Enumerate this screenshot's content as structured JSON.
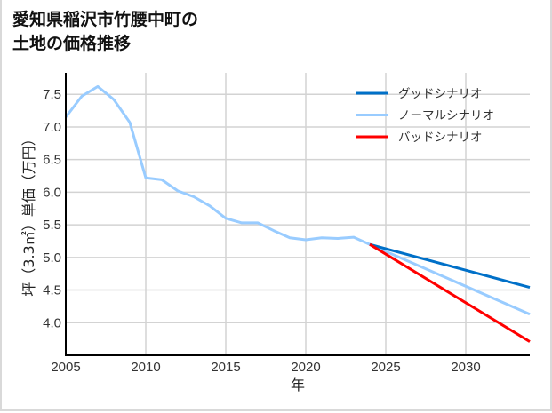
{
  "title": {
    "line1": "愛知県稲沢市竹腰中町の",
    "line2": "土地の価格推移"
  },
  "chart_data": {
    "type": "line",
    "title": "愛知県稲沢市竹腰中町の土地の価格推移",
    "xlabel": "年",
    "ylabel": "坪（3.3㎡）単価（万円）",
    "xlim": [
      2005,
      2034
    ],
    "ylim": [
      3.5,
      7.83
    ],
    "x_ticks": [
      2005,
      2010,
      2015,
      2020,
      2025,
      2030
    ],
    "x_tick_labels": [
      "2005",
      "2010",
      "2015",
      "2020",
      "2025",
      "2030"
    ],
    "y_ticks": [
      4.0,
      4.5,
      5.0,
      5.5,
      6.0,
      6.5,
      7.0,
      7.5
    ],
    "y_tick_labels": [
      "4.0",
      "4.5",
      "5.0",
      "5.5",
      "6.0",
      "6.5",
      "7.0",
      "7.5"
    ],
    "grid": true,
    "legend_position": "upper right",
    "series": [
      {
        "name": "グッドシナリオ",
        "color": "#0070c8",
        "x": [
          2024,
          2034
        ],
        "values": [
          5.2,
          4.54
        ]
      },
      {
        "name": "ノーマルシナリオ",
        "color": "#99ccff",
        "x": [
          2005,
          2006,
          2007,
          2008,
          2009,
          2010,
          2011,
          2012,
          2013,
          2014,
          2015,
          2016,
          2017,
          2018,
          2019,
          2020,
          2021,
          2022,
          2023,
          2024,
          2034
        ],
        "values": [
          7.15,
          7.47,
          7.62,
          7.42,
          7.07,
          6.22,
          6.19,
          6.02,
          5.93,
          5.79,
          5.6,
          5.53,
          5.53,
          5.41,
          5.3,
          5.27,
          5.3,
          5.29,
          5.31,
          5.2,
          4.13
        ]
      },
      {
        "name": "バッドシナリオ",
        "color": "#ff0000",
        "x": [
          2024,
          2034
        ],
        "values": [
          5.2,
          3.71
        ]
      }
    ]
  },
  "legend": {
    "items": [
      {
        "label": "グッドシナリオ",
        "color": "#0070c8"
      },
      {
        "label": "ノーマルシナリオ",
        "color": "#99ccff"
      },
      {
        "label": "バッドシナリオ",
        "color": "#ff0000"
      }
    ]
  },
  "colors": {
    "grid": "#d3d3d3",
    "axis": "#000000",
    "border": "#d9d9d9"
  }
}
